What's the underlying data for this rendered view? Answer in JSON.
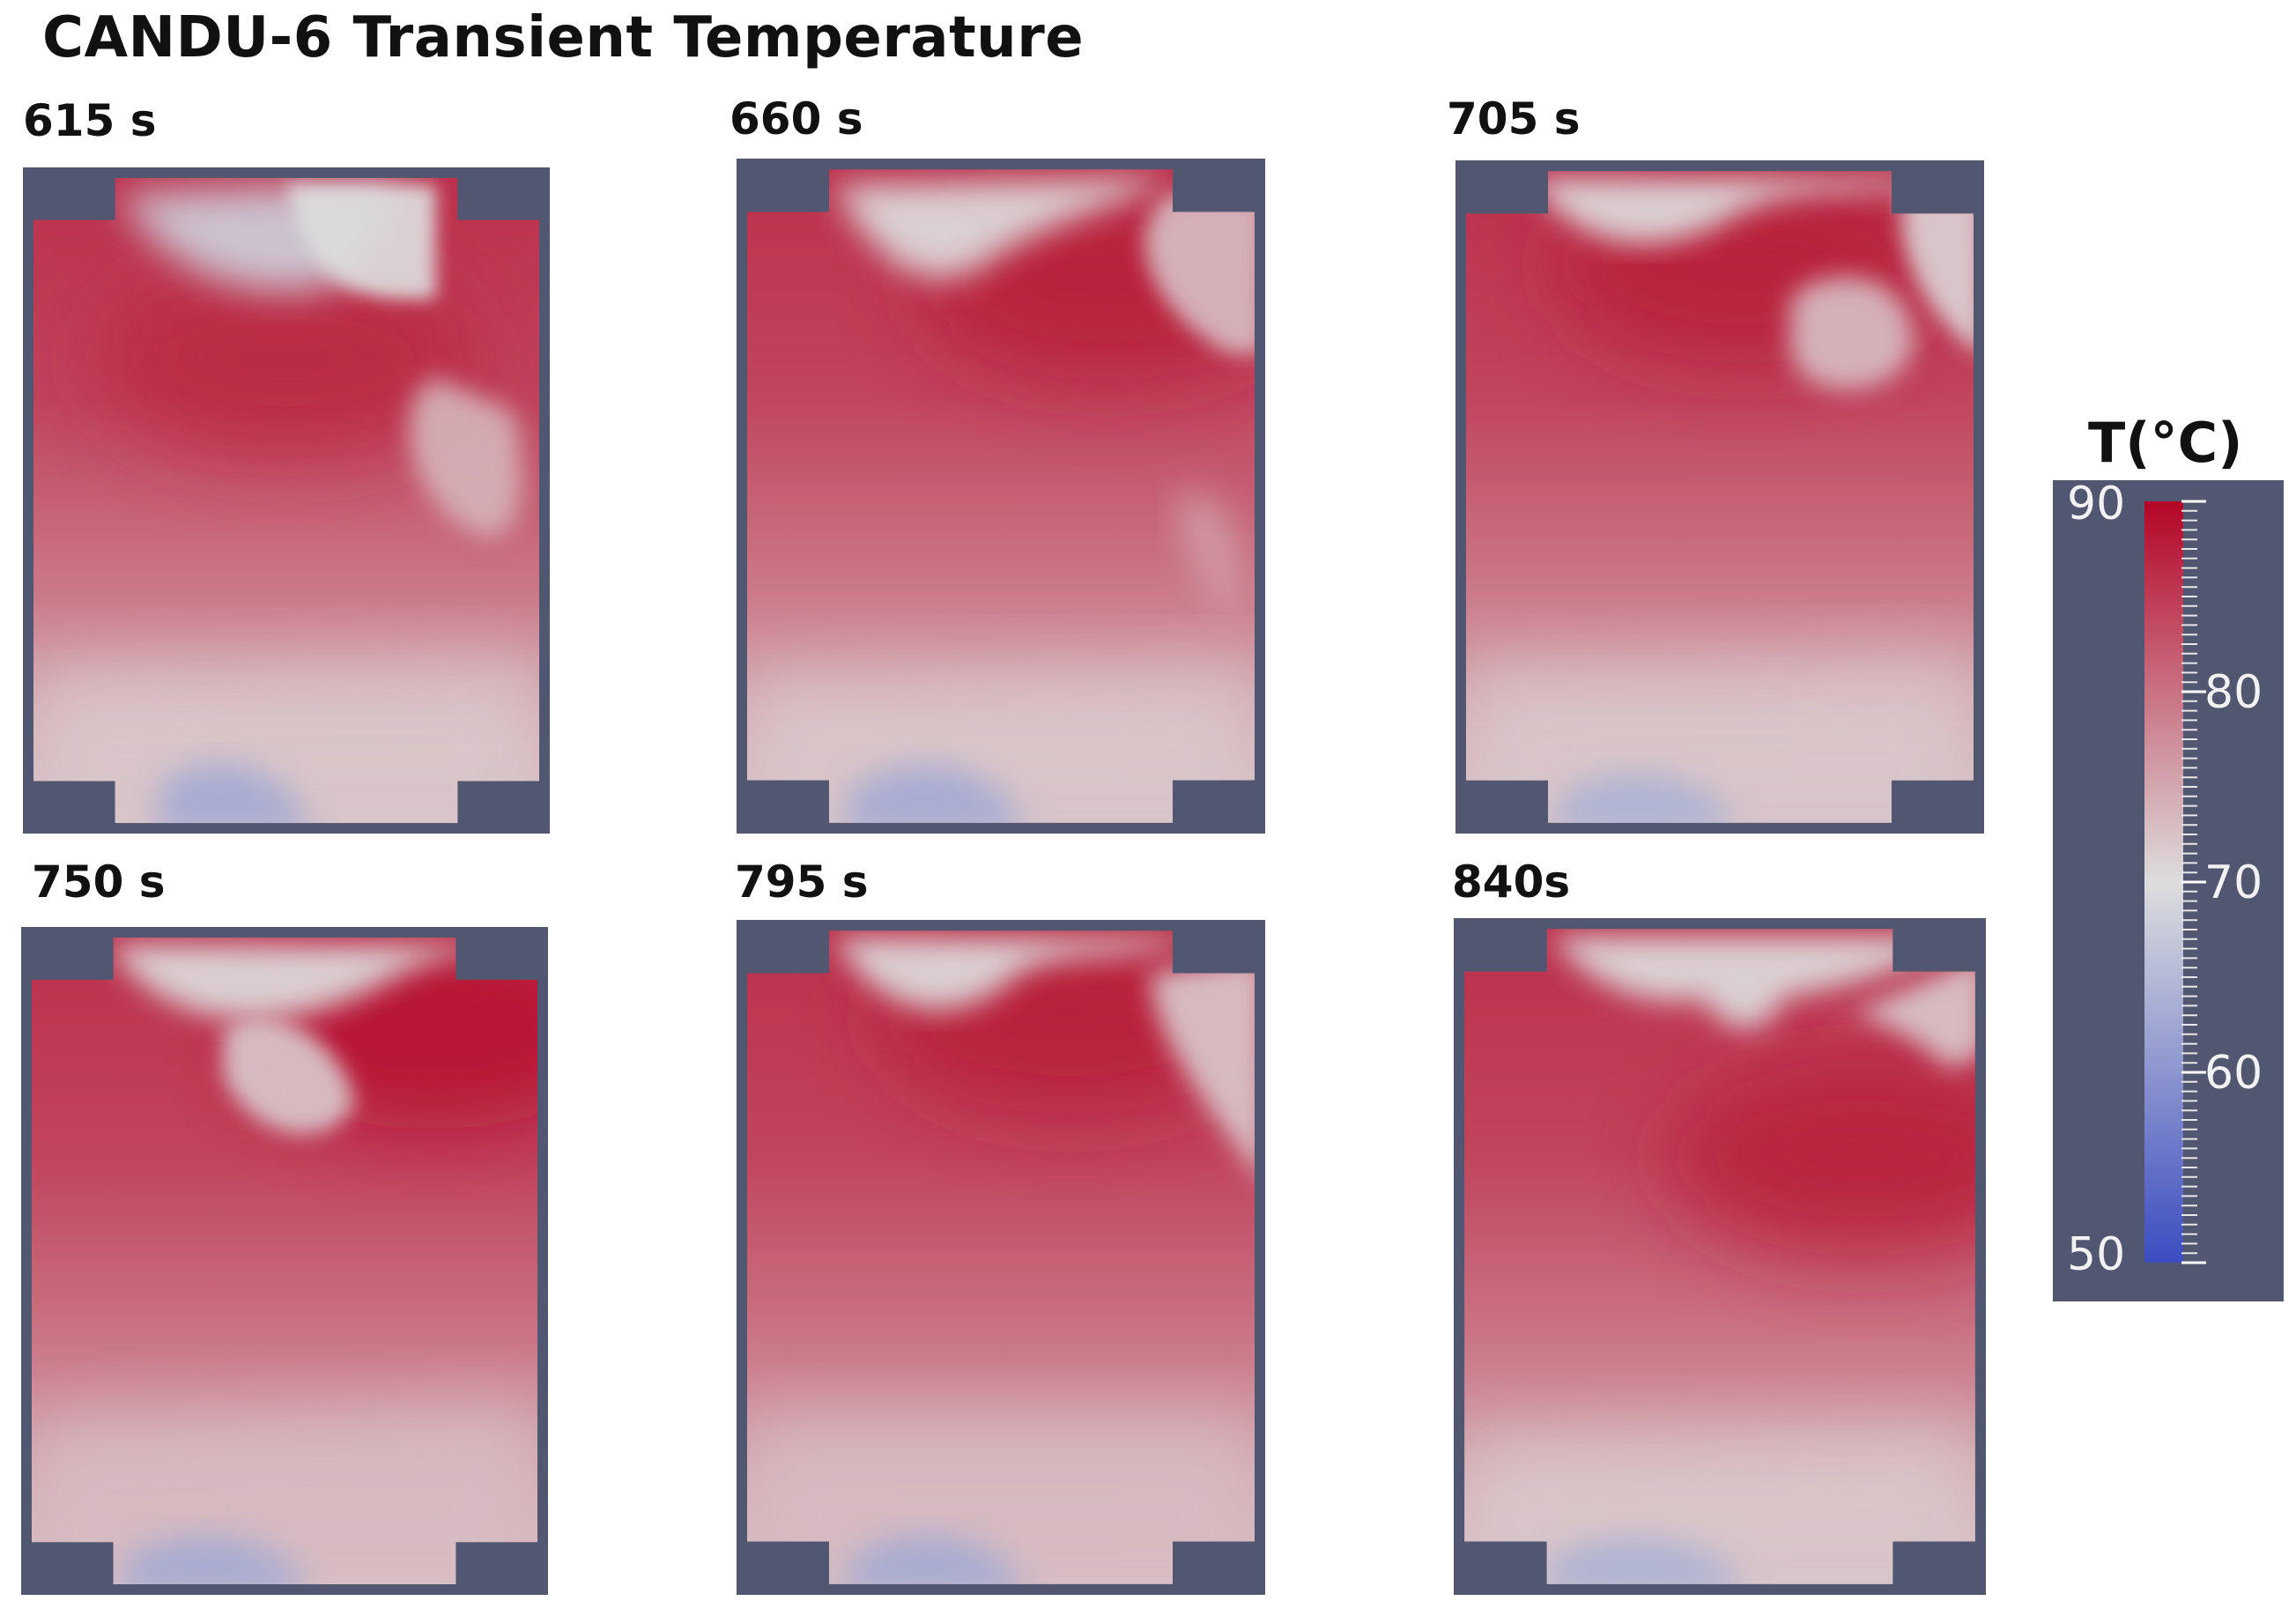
{
  "title": "CANDU-6 Transient Temperature",
  "colorbar": {
    "title": "T(°C)",
    "min": 50,
    "max": 90,
    "tick_labels": [
      "90",
      "80",
      "70",
      "60",
      "50"
    ],
    "tick_values": [
      90,
      80,
      70,
      60,
      50
    ],
    "colors": {
      "cold": "#3b4cc0",
      "mid": "#dddddd",
      "hot": "#b40426",
      "background": "#525771"
    }
  },
  "panels": [
    {
      "label": "615 s",
      "time_s": 615
    },
    {
      "label": "660 s",
      "time_s": 660
    },
    {
      "label": "705 s",
      "time_s": 705
    },
    {
      "label": "750 s",
      "time_s": 750
    },
    {
      "label": "795 s",
      "time_s": 795
    },
    {
      "label": "840s",
      "time_s": 840
    }
  ]
}
